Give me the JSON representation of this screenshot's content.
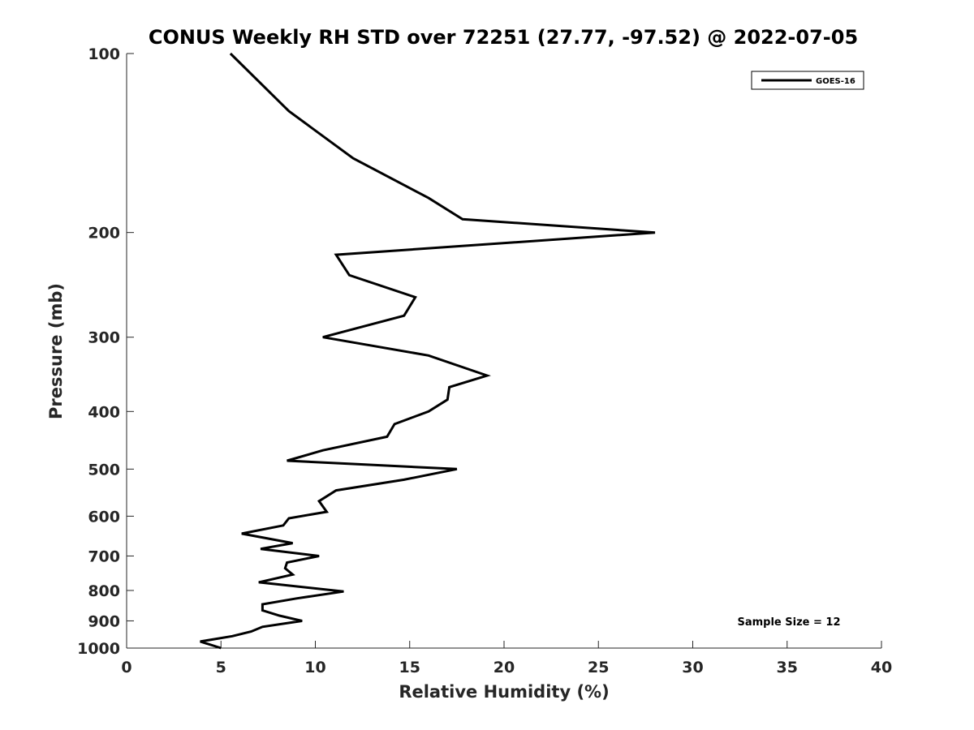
{
  "chart_data": {
    "type": "line",
    "title": "CONUS Weekly RH STD over 72251 (27.77, -97.52) @ 2022-07-05",
    "xlabel": "Relative Humidity (%)",
    "ylabel": "Pressure (mb)",
    "xlim": [
      0,
      40
    ],
    "ylim": [
      100,
      1000
    ],
    "y_scale": "log",
    "y_reversed": true,
    "x_ticks": [
      0,
      5,
      10,
      15,
      20,
      25,
      30,
      35,
      40
    ],
    "x_tick_labels": [
      "0",
      "5",
      "10",
      "15",
      "20",
      "25",
      "30",
      "35",
      "40"
    ],
    "y_ticks": [
      100,
      200,
      300,
      400,
      500,
      600,
      700,
      800,
      900,
      1000
    ],
    "y_tick_labels": [
      "100",
      "200",
      "300",
      "400",
      "500",
      "600",
      "700",
      "800",
      "900",
      "1000"
    ],
    "grid": false,
    "legend_position": "top-right",
    "annotation": "Sample Size = 12",
    "series": [
      {
        "name": "GOES-16",
        "color": "#000000",
        "points": [
          [
            5.5,
            100
          ],
          [
            8.6,
            125
          ],
          [
            12.0,
            150
          ],
          [
            16.0,
            175
          ],
          [
            17.8,
            190
          ],
          [
            28.0,
            200
          ],
          [
            11.1,
            218
          ],
          [
            11.8,
            236
          ],
          [
            15.3,
            257
          ],
          [
            14.7,
            276
          ],
          [
            10.4,
            300
          ],
          [
            16.0,
            322
          ],
          [
            19.1,
            348
          ],
          [
            17.1,
            364
          ],
          [
            17.0,
            382
          ],
          [
            16.0,
            400
          ],
          [
            14.2,
            420
          ],
          [
            13.8,
            441
          ],
          [
            10.4,
            465
          ],
          [
            8.5,
            484
          ],
          [
            17.5,
            500
          ],
          [
            14.7,
            521
          ],
          [
            11.1,
            543
          ],
          [
            10.2,
            566
          ],
          [
            10.6,
            590
          ],
          [
            8.6,
            605
          ],
          [
            8.3,
            622
          ],
          [
            6.1,
            642
          ],
          [
            8.8,
            666
          ],
          [
            7.1,
            681
          ],
          [
            10.2,
            700
          ],
          [
            8.5,
            718
          ],
          [
            8.4,
            734
          ],
          [
            8.8,
            752
          ],
          [
            7.0,
            775
          ],
          [
            11.5,
            803
          ],
          [
            9.0,
            825
          ],
          [
            7.2,
            844
          ],
          [
            7.2,
            864
          ],
          [
            8.1,
            882
          ],
          [
            9.3,
            900
          ],
          [
            7.2,
            921
          ],
          [
            6.6,
            938
          ],
          [
            5.6,
            955
          ],
          [
            3.9,
            975
          ],
          [
            5.0,
            1000
          ]
        ]
      }
    ]
  }
}
